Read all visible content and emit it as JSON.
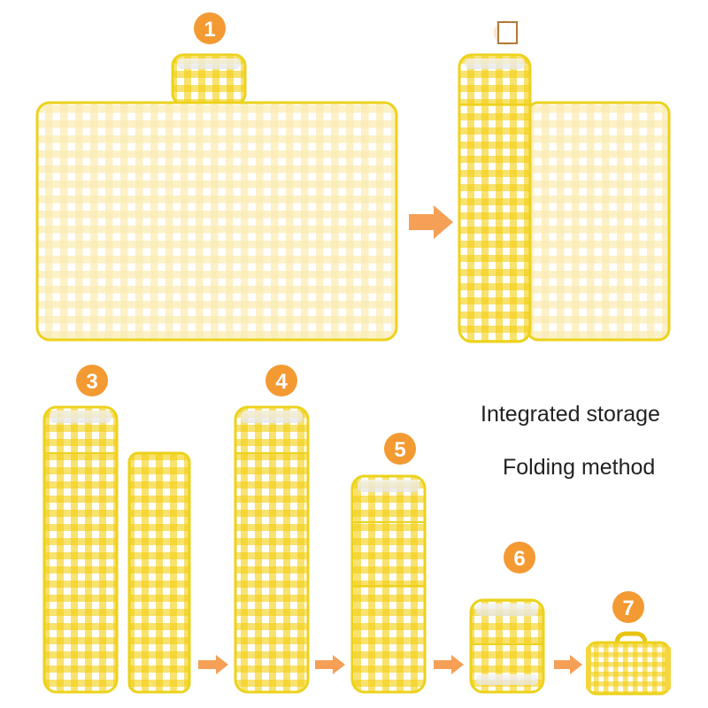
{
  "captions": {
    "line1": "Integrated storage",
    "line2": "Folding method"
  },
  "steps": [
    {
      "number": "1"
    },
    {
      "number": ""
    },
    {
      "number": "3"
    },
    {
      "number": "4"
    },
    {
      "number": "5"
    },
    {
      "number": "6"
    },
    {
      "number": "7"
    }
  ],
  "colors": {
    "badge": "#f39a33",
    "arrow": "#f5a056",
    "plaid_strong": "#f4cf10",
    "plaid_light": "#f8e79a",
    "border": "#ecd21c"
  }
}
